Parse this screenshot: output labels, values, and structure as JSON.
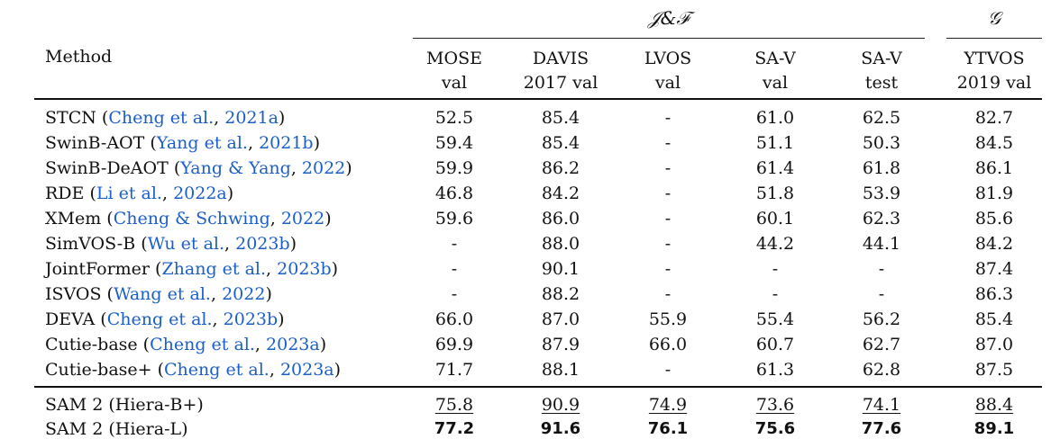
{
  "header": {
    "group_jf": "𝒥&ℱ",
    "group_g": "𝒢",
    "method": "Method",
    "columns": [
      {
        "line1": "MOSE",
        "line2": "val"
      },
      {
        "line1": "DAVIS",
        "line2": "2017 val"
      },
      {
        "line1": "LVOS",
        "line2": "val"
      },
      {
        "line1": "SA-V",
        "line2": "val"
      },
      {
        "line1": "SA-V",
        "line2": "test"
      },
      {
        "line1": "YTVOS",
        "line2": "2019 val"
      }
    ]
  },
  "rows": [
    {
      "name": "STCN",
      "c_open": " (",
      "c_auth": "Cheng et al.",
      "c_year": "2021a",
      "c_close": ")",
      "values": [
        "52.5",
        "85.4",
        "-",
        "61.0",
        "62.5",
        "82.7"
      ]
    },
    {
      "name": "SwinB-AOT",
      "c_open": " (",
      "c_auth": "Yang et al.",
      "c_year": "2021b",
      "c_close": ")",
      "values": [
        "59.4",
        "85.4",
        "-",
        "51.1",
        "50.3",
        "84.5"
      ]
    },
    {
      "name": "SwinB-DeAOT",
      "c_open": " (",
      "c_auth": "Yang & Yang",
      "c_year": "2022",
      "c_close": ")",
      "values": [
        "59.9",
        "86.2",
        "-",
        "61.4",
        "61.8",
        "86.1"
      ]
    },
    {
      "name": "RDE",
      "c_open": " (",
      "c_auth": "Li et al.",
      "c_year": "2022a",
      "c_close": ")",
      "values": [
        "46.8",
        "84.2",
        "-",
        "51.8",
        "53.9",
        "81.9"
      ]
    },
    {
      "name": "XMem",
      "c_open": " (",
      "c_auth": "Cheng & Schwing",
      "c_year": "2022",
      "c_close": ")",
      "values": [
        "59.6",
        "86.0",
        "-",
        "60.1",
        "62.3",
        "85.6"
      ]
    },
    {
      "name": "SimVOS-B",
      "c_open": " (",
      "c_auth": "Wu et al.",
      "c_year": "2023b",
      "c_close": ")",
      "values": [
        "-",
        "88.0",
        "-",
        "44.2",
        "44.1",
        "84.2"
      ]
    },
    {
      "name": "JointFormer",
      "c_open": " (",
      "c_auth": "Zhang et al.",
      "c_year": "2023b",
      "c_close": ")",
      "values": [
        "-",
        "90.1",
        "-",
        "-",
        "-",
        "87.4"
      ]
    },
    {
      "name": "ISVOS",
      "c_open": " (",
      "c_auth": "Wang et al.",
      "c_year": "2022",
      "c_close": ")",
      "values": [
        "-",
        "88.2",
        "-",
        "-",
        "-",
        "86.3"
      ]
    },
    {
      "name": "DEVA",
      "c_open": " (",
      "c_auth": "Cheng et al.",
      "c_year": "2023b",
      "c_close": ")",
      "values": [
        "66.0",
        "87.0",
        "55.9",
        "55.4",
        "56.2",
        "85.4"
      ]
    },
    {
      "name": "Cutie-base",
      "c_open": " (",
      "c_auth": "Cheng et al.",
      "c_year": "2023a",
      "c_close": ")",
      "values": [
        "69.9",
        "87.9",
        "66.0",
        "60.7",
        "62.7",
        "87.0"
      ]
    },
    {
      "name": "Cutie-base+",
      "c_open": " (",
      "c_auth": "Cheng et al.",
      "c_year": "2023a",
      "c_close": ")",
      "values": [
        "71.7",
        "88.1",
        "-",
        "61.3",
        "62.8",
        "87.5"
      ]
    }
  ],
  "sam_rows": [
    {
      "name": "SAM 2 (Hiera-B+)",
      "style": "underline",
      "values": [
        "75.8",
        "90.9",
        "74.9",
        "73.6",
        "74.1",
        "88.4"
      ]
    },
    {
      "name": "SAM 2 (Hiera-L)",
      "style": "bold",
      "values": [
        "77.2",
        "91.6",
        "76.1",
        "75.6",
        "77.6",
        "89.1"
      ]
    }
  ]
}
